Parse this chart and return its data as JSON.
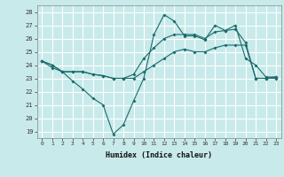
{
  "xlabel": "Humidex (Indice chaleur)",
  "background_color": "#c8eaea",
  "grid_color": "#ffffff",
  "line_color": "#1a6b6b",
  "xlim": [
    -0.5,
    23.5
  ],
  "ylim": [
    18.5,
    28.5
  ],
  "yticks": [
    19,
    20,
    21,
    22,
    23,
    24,
    25,
    26,
    27,
    28
  ],
  "xticks": [
    0,
    1,
    2,
    3,
    4,
    5,
    6,
    7,
    8,
    9,
    10,
    11,
    12,
    13,
    14,
    15,
    16,
    17,
    18,
    19,
    20,
    21,
    22,
    23
  ],
  "line1_x": [
    0,
    1,
    2,
    3,
    4,
    5,
    6,
    7,
    8,
    9,
    10,
    11,
    12,
    13,
    14,
    15,
    16,
    17,
    18,
    19,
    20,
    21,
    22,
    23
  ],
  "line1_y": [
    24.3,
    24.0,
    23.5,
    22.8,
    22.2,
    21.5,
    21.0,
    18.8,
    19.5,
    21.3,
    23.0,
    26.3,
    27.8,
    27.3,
    26.2,
    26.2,
    25.9,
    27.0,
    26.6,
    27.0,
    24.5,
    24.0,
    23.1,
    23.1
  ],
  "line2_x": [
    0,
    1,
    2,
    3,
    4,
    5,
    6,
    7,
    8,
    9,
    10,
    11,
    12,
    13,
    14,
    15,
    16,
    17,
    18,
    19,
    20,
    21,
    22,
    23
  ],
  "line2_y": [
    24.3,
    23.8,
    23.5,
    23.5,
    23.5,
    23.3,
    23.2,
    23.0,
    23.0,
    23.0,
    23.5,
    24.0,
    24.5,
    25.0,
    25.2,
    25.0,
    25.0,
    25.3,
    25.5,
    25.5,
    25.5,
    23.0,
    23.0,
    23.0
  ],
  "line3_x": [
    0,
    1,
    2,
    3,
    4,
    5,
    6,
    7,
    8,
    9,
    10,
    11,
    12,
    13,
    14,
    15,
    16,
    17,
    18,
    19,
    20,
    21,
    22,
    23
  ],
  "line3_y": [
    24.3,
    24.0,
    23.5,
    23.5,
    23.5,
    23.3,
    23.2,
    23.0,
    23.0,
    23.3,
    24.5,
    25.3,
    26.0,
    26.3,
    26.3,
    26.3,
    26.0,
    26.5,
    26.6,
    26.7,
    25.7,
    23.0,
    23.0,
    23.1
  ]
}
